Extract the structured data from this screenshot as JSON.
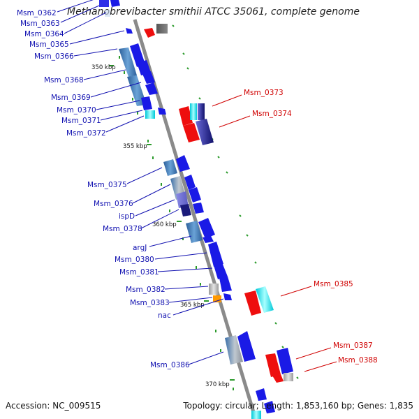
{
  "title": "Methanobrevibacter smithii ATCC 35061, complete genome",
  "footer": {
    "accession": "Accession: NC_009515",
    "summary": "Topology: circular; Length: 1,853,160 bp; Genes: 1,835"
  },
  "colors": {
    "backbone": "#8c8c8c",
    "tick": "#2a9a2a",
    "forward_label": "#1010b0",
    "reverse_label": "#d00000",
    "gene_blue": "#1a1ae6",
    "gene_steel": "#4a88c0",
    "gene_cyan": "#22dddd",
    "gene_red": "#ee0e0e",
    "gene_gray": "#b8b8b8",
    "gene_orange": "#ff9900",
    "gene_navy": "#1a1a7a"
  },
  "kbp_markers": [
    "350 kbp",
    "355 kbp",
    "360 kbp",
    "365 kbp",
    "370 kbp"
  ],
  "forward_labels": [
    "Msm_0362",
    "Msm_0363",
    "Msm_0364",
    "Msm_0365",
    "Msm_0366",
    "Msm_0368",
    "Msm_0369",
    "Msm_0370",
    "Msm_0371",
    "Msm_0372",
    "Msm_0375",
    "Msm_0376",
    "ispD",
    "Msm_0378",
    "argJ",
    "Msm_0380",
    "Msm_0381",
    "Msm_0382",
    "Msm_0383",
    "nac",
    "Msm_0386"
  ],
  "reverse_labels": [
    "Msm_0373",
    "Msm_0374",
    "Msm_0385",
    "Msm_0387",
    "Msm_0388"
  ]
}
